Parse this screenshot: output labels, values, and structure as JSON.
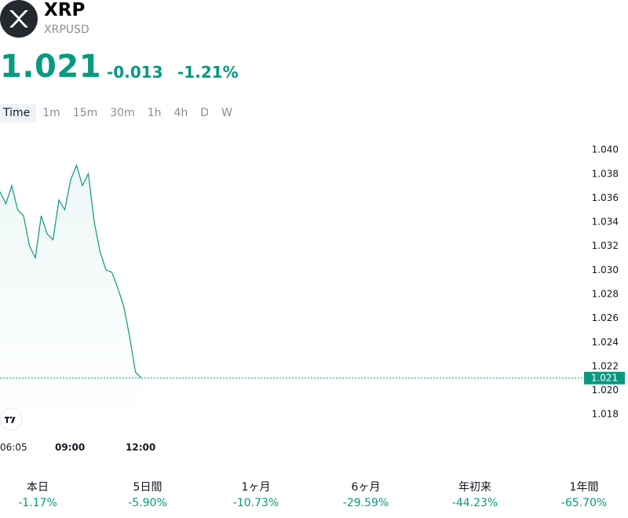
{
  "header": {
    "symbol": "XRP",
    "ticker": "XRPUSD",
    "logo_icon": "xrp-logo-icon",
    "price": "1.021",
    "change_abs": "-0.013",
    "change_pct": "-1.21%"
  },
  "timeframes": [
    {
      "label": "Time",
      "active": true
    },
    {
      "label": "1m",
      "active": false
    },
    {
      "label": "15m",
      "active": false
    },
    {
      "label": "30m",
      "active": false
    },
    {
      "label": "1h",
      "active": false
    },
    {
      "label": "4h",
      "active": false
    },
    {
      "label": "D",
      "active": false
    },
    {
      "label": "W",
      "active": false
    }
  ],
  "colors": {
    "accent": "#089981",
    "text": "#131722",
    "muted": "#8a8e97"
  },
  "chart_data": {
    "type": "area",
    "yticks": [
      "1.040",
      "1.038",
      "1.036",
      "1.034",
      "1.032",
      "1.030",
      "1.028",
      "1.026",
      "1.024",
      "1.022",
      "1.020",
      "1.018"
    ],
    "ylim": [
      1.017,
      1.0405
    ],
    "xtick_labels": [
      {
        "label": "06:05",
        "bold": false
      },
      {
        "label": "09:00",
        "bold": true
      },
      {
        "label": "12:00",
        "bold": true
      }
    ],
    "x": [
      "06:05",
      "06:20",
      "06:35",
      "06:50",
      "07:05",
      "07:20",
      "07:35",
      "07:50",
      "08:05",
      "08:20",
      "08:35",
      "08:50",
      "09:05",
      "09:20",
      "09:35",
      "09:50",
      "10:05",
      "10:20",
      "10:35",
      "10:50",
      "11:05",
      "11:20",
      "11:35",
      "11:50",
      "12:05"
    ],
    "values": [
      1.0365,
      1.0355,
      1.037,
      1.035,
      1.0345,
      1.032,
      1.031,
      1.0345,
      1.033,
      1.0325,
      1.0358,
      1.035,
      1.0375,
      1.0387,
      1.037,
      1.038,
      1.034,
      1.0315,
      1.03,
      1.0298,
      1.0285,
      1.027,
      1.0245,
      1.0215,
      1.021
    ],
    "current_price_label": "1.021",
    "grid": false,
    "watermark_icon": "tradingview-logo-icon"
  },
  "performance": [
    {
      "label": "本日",
      "value": "-1.17%"
    },
    {
      "label": "5日間",
      "value": "-5.90%"
    },
    {
      "label": "1ヶ月",
      "value": "-10.73%"
    },
    {
      "label": "6ヶ月",
      "value": "-29.59%"
    },
    {
      "label": "年初来",
      "value": "-44.23%"
    },
    {
      "label": "1年間",
      "value": "-65.70%"
    }
  ]
}
